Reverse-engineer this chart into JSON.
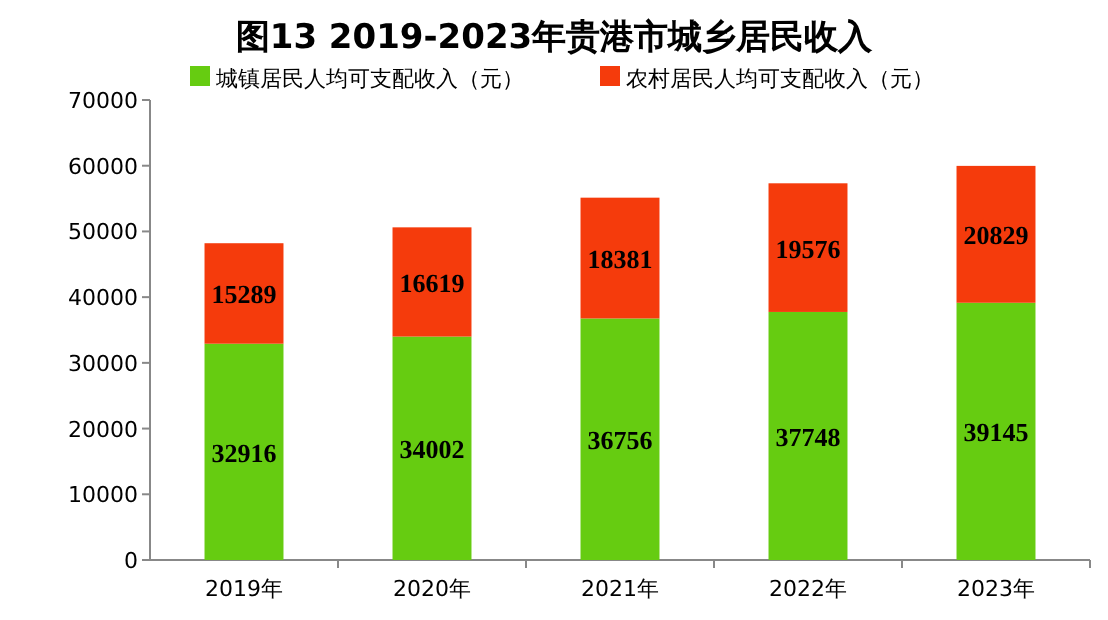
{
  "chart_data": {
    "type": "bar",
    "title": "图13  2019-2023年贵港市城乡居民收入",
    "categories": [
      "2019年",
      "2020年",
      "2021年",
      "2022年",
      "2023年"
    ],
    "series": [
      {
        "name": "城镇居民人均可支配收入（元）",
        "color": "#66cc11",
        "values": [
          32916,
          34002,
          36756,
          37748,
          39145
        ]
      },
      {
        "name": "农村居民人均可支配收入（元）",
        "color": "#f53b0c",
        "values": [
          15289,
          16619,
          18381,
          19576,
          20829
        ]
      }
    ],
    "stacked": true,
    "data_labels": true,
    "legend": "top",
    "ylim": [
      0,
      70000
    ],
    "yticks": [
      0,
      10000,
      20000,
      30000,
      40000,
      50000,
      60000,
      70000
    ]
  }
}
